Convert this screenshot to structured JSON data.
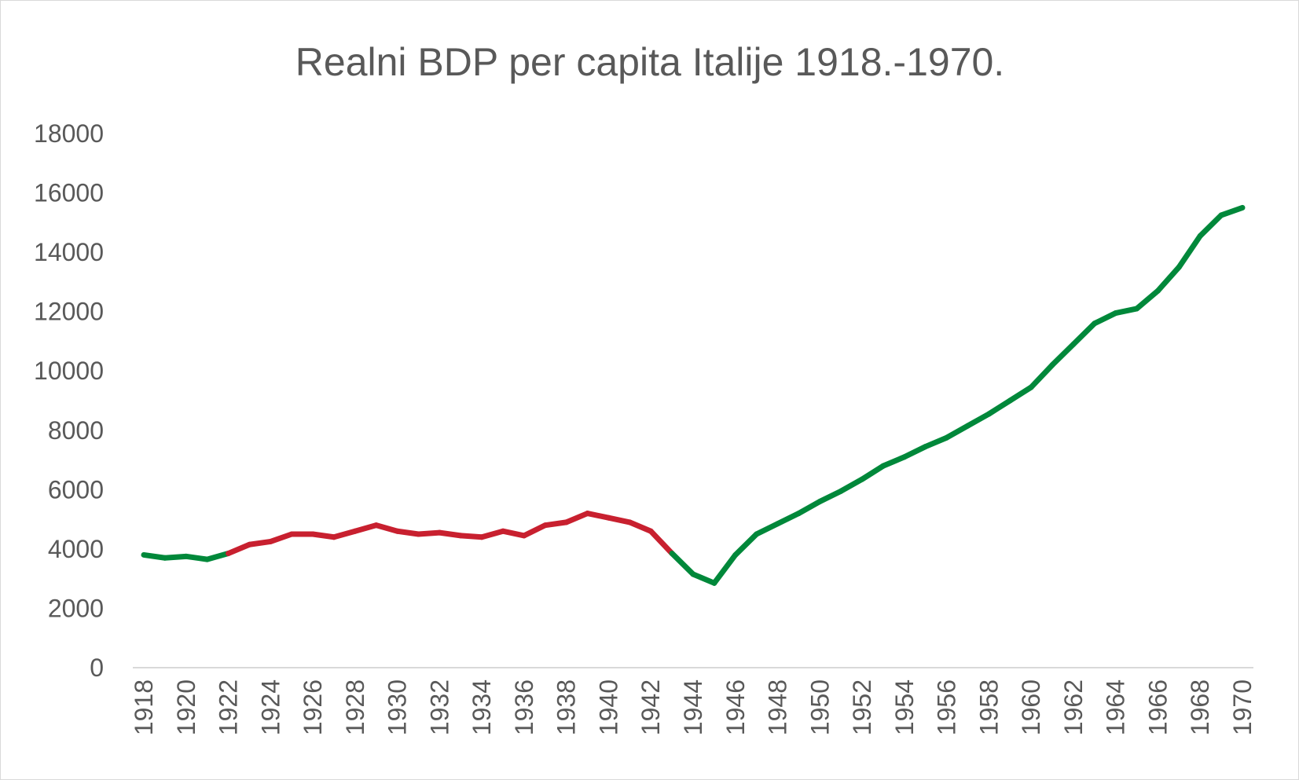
{
  "chart_data": {
    "type": "line",
    "title": "Realni BDP per capita Italije 1918.-1970.",
    "xlabel": "",
    "ylabel": "",
    "ylim": [
      0,
      18000
    ],
    "ytick_step": 2000,
    "yticks": [
      "0",
      "2000",
      "4000",
      "6000",
      "8000",
      "10000",
      "12000",
      "14000",
      "16000",
      "18000"
    ],
    "xlabel_years": [
      "1918",
      "1920",
      "1922",
      "1924",
      "1926",
      "1928",
      "1930",
      "1932",
      "1934",
      "1936",
      "1938",
      "1940",
      "1942",
      "1944",
      "1946",
      "1948",
      "1950",
      "1952",
      "1954",
      "1956",
      "1958",
      "1960",
      "1962",
      "1964",
      "1966",
      "1968",
      "1970"
    ],
    "grid": false,
    "legend": "none",
    "x": [
      1918,
      1919,
      1920,
      1921,
      1922,
      1923,
      1924,
      1925,
      1926,
      1927,
      1928,
      1929,
      1930,
      1931,
      1932,
      1933,
      1934,
      1935,
      1936,
      1937,
      1938,
      1939,
      1940,
      1941,
      1942,
      1943,
      1944,
      1945,
      1946,
      1947,
      1948,
      1949,
      1950,
      1951,
      1952,
      1953,
      1954,
      1955,
      1956,
      1957,
      1958,
      1959,
      1960,
      1961,
      1962,
      1963,
      1964,
      1965,
      1966,
      1967,
      1968,
      1969,
      1970
    ],
    "values": [
      3800,
      3700,
      3750,
      3650,
      3850,
      4150,
      4250,
      4500,
      4500,
      4400,
      4600,
      4800,
      4600,
      4500,
      4550,
      4450,
      4400,
      4600,
      4450,
      4800,
      4900,
      5200,
      5050,
      4900,
      4600,
      3850,
      3150,
      2850,
      3800,
      4500,
      4850,
      5200,
      5600,
      5950,
      6350,
      6800,
      7100,
      7450,
      7750,
      8150,
      8550,
      9000,
      9450,
      10200,
      10900,
      11600,
      11950,
      12100,
      12700,
      13500,
      14550,
      15250,
      15500
    ],
    "segment_colors": [
      "#00883a",
      "#00883a",
      "#00883a",
      "#00883a",
      "#c8202f",
      "#c8202f",
      "#c8202f",
      "#c8202f",
      "#c8202f",
      "#c8202f",
      "#c8202f",
      "#c8202f",
      "#c8202f",
      "#c8202f",
      "#c8202f",
      "#c8202f",
      "#c8202f",
      "#c8202f",
      "#c8202f",
      "#c8202f",
      "#c8202f",
      "#c8202f",
      "#c8202f",
      "#c8202f",
      "#c8202f",
      "#00883a",
      "#00883a",
      "#00883a",
      "#00883a",
      "#00883a",
      "#00883a",
      "#00883a",
      "#00883a",
      "#00883a",
      "#00883a",
      "#00883a",
      "#00883a",
      "#00883a",
      "#00883a",
      "#00883a",
      "#00883a",
      "#00883a",
      "#00883a",
      "#00883a",
      "#00883a",
      "#00883a",
      "#00883a",
      "#00883a",
      "#00883a",
      "#00883a",
      "#00883a",
      "#00883a"
    ],
    "colors": {
      "green": "#00883a",
      "red": "#c8202f",
      "axis": "#d9d9d9",
      "text": "#595959"
    }
  }
}
